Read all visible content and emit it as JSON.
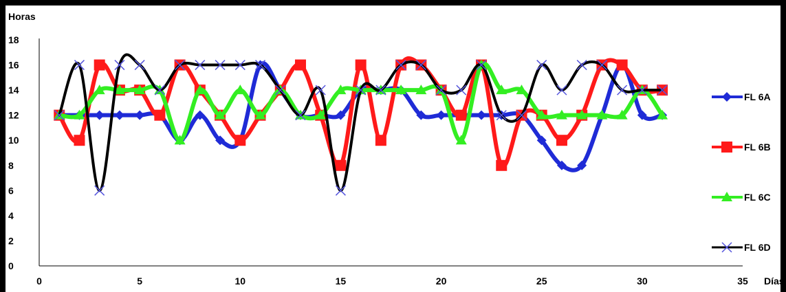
{
  "chart_data": {
    "type": "line",
    "ylabel": "Horas",
    "xlabel": "Días",
    "xlim": [
      0,
      35
    ],
    "ylim": [
      0,
      18
    ],
    "xticks": [
      0,
      5,
      10,
      15,
      20,
      25,
      30,
      35
    ],
    "yticks": [
      0,
      2,
      4,
      6,
      8,
      10,
      12,
      14,
      16,
      18
    ],
    "grid": false,
    "legend_position": "right",
    "x": [
      1,
      2,
      3,
      4,
      5,
      6,
      7,
      8,
      9,
      10,
      11,
      12,
      13,
      14,
      15,
      16,
      17,
      18,
      19,
      20,
      21,
      22,
      23,
      24,
      25,
      26,
      27,
      28,
      29,
      30,
      31
    ],
    "series": [
      {
        "name": "FL 6A",
        "color": "#1f2bd6",
        "marker": "diamond",
        "values": [
          12,
          12,
          12,
          12,
          12,
          12,
          10,
          12,
          10,
          10,
          16,
          14,
          12,
          12,
          12,
          14,
          14,
          14,
          12,
          12,
          12,
          12,
          12,
          12,
          10,
          8,
          8,
          12,
          16,
          12,
          12
        ]
      },
      {
        "name": "FL 6B",
        "color": "#ff1a1a",
        "marker": "square",
        "values": [
          12,
          10,
          16,
          14,
          14,
          12,
          16,
          14,
          12,
          10,
          12,
          14,
          16,
          12,
          8,
          16,
          10,
          16,
          16,
          14,
          12,
          16,
          8,
          12,
          12,
          10,
          12,
          16,
          16,
          14,
          14
        ]
      },
      {
        "name": "FL 6C",
        "color": "#33ee22",
        "marker": "triangle",
        "values": [
          12,
          12,
          14,
          14,
          14,
          14,
          10,
          14,
          12,
          14,
          12,
          14,
          12,
          12,
          14,
          14,
          14,
          14,
          14,
          14,
          10,
          16,
          14,
          14,
          12,
          12,
          12,
          12,
          12,
          14,
          12
        ]
      },
      {
        "name": "FL 6D",
        "color": "#000000",
        "marker": "x",
        "values": [
          12,
          16,
          6,
          16,
          16,
          14,
          16,
          16,
          16,
          16,
          16,
          14,
          12,
          14,
          6,
          14,
          14,
          16,
          16,
          14,
          14,
          16,
          12,
          12,
          16,
          14,
          16,
          16,
          14,
          14,
          14
        ]
      }
    ]
  }
}
